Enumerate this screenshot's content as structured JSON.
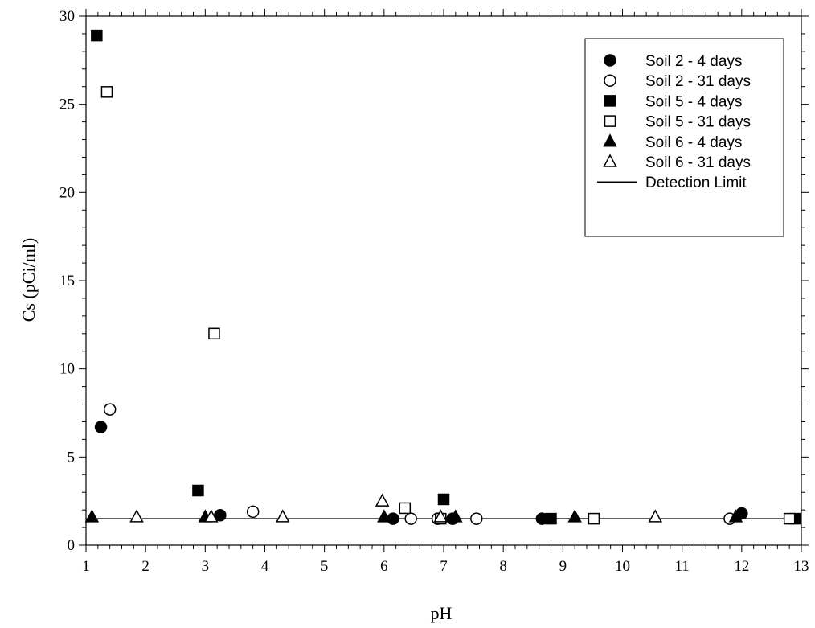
{
  "chart_data": {
    "type": "scatter",
    "xlabel": "pH",
    "ylabel": "Cs (pCi/ml)",
    "xlim": [
      1,
      13
    ],
    "ylim": [
      0,
      30
    ],
    "x_ticks": [
      1,
      2,
      3,
      4,
      5,
      6,
      7,
      8,
      9,
      10,
      11,
      12,
      13
    ],
    "y_ticks": [
      0,
      5,
      10,
      15,
      20,
      25,
      30
    ],
    "grid": false,
    "legend_position": "top-right",
    "series": [
      {
        "name": "Soil 2 - 4 days",
        "marker": "circle",
        "filled": true,
        "points": [
          [
            1.25,
            6.7
          ],
          [
            3.25,
            1.7
          ],
          [
            6.15,
            1.5
          ],
          [
            7.15,
            1.5
          ],
          [
            8.65,
            1.5
          ],
          [
            12.0,
            1.8
          ]
        ]
      },
      {
        "name": "Soil 2 - 31 days",
        "marker": "circle",
        "filled": false,
        "points": [
          [
            1.4,
            7.7
          ],
          [
            3.8,
            1.9
          ],
          [
            6.45,
            1.5
          ],
          [
            6.9,
            1.5
          ],
          [
            7.55,
            1.5
          ],
          [
            11.8,
            1.5
          ]
        ]
      },
      {
        "name": "Soil 5 - 4 days",
        "marker": "square",
        "filled": true,
        "points": [
          [
            1.18,
            28.9
          ],
          [
            2.88,
            3.1
          ],
          [
            7.0,
            2.6
          ],
          [
            8.8,
            1.5
          ],
          [
            12.9,
            1.5
          ]
        ]
      },
      {
        "name": "Soil 5 - 31 days",
        "marker": "square",
        "filled": false,
        "points": [
          [
            1.35,
            25.7
          ],
          [
            3.15,
            12.0
          ],
          [
            6.35,
            2.1
          ],
          [
            6.95,
            1.5
          ],
          [
            9.52,
            1.5
          ],
          [
            12.8,
            1.5
          ]
        ]
      },
      {
        "name": "Soil 6 - 4 days",
        "marker": "triangle",
        "filled": true,
        "points": [
          [
            1.1,
            1.6
          ],
          [
            3.0,
            1.6
          ],
          [
            6.0,
            1.6
          ],
          [
            7.2,
            1.6
          ],
          [
            9.2,
            1.6
          ],
          [
            11.9,
            1.6
          ]
        ]
      },
      {
        "name": "Soil 6 - 31 days",
        "marker": "triangle",
        "filled": false,
        "points": [
          [
            1.85,
            1.6
          ],
          [
            3.1,
            1.6
          ],
          [
            4.3,
            1.6
          ],
          [
            5.97,
            2.5
          ],
          [
            6.95,
            1.6
          ],
          [
            10.55,
            1.6
          ]
        ]
      }
    ],
    "lines": [
      {
        "name": "Detection Limit",
        "y": 1.5
      }
    ]
  }
}
